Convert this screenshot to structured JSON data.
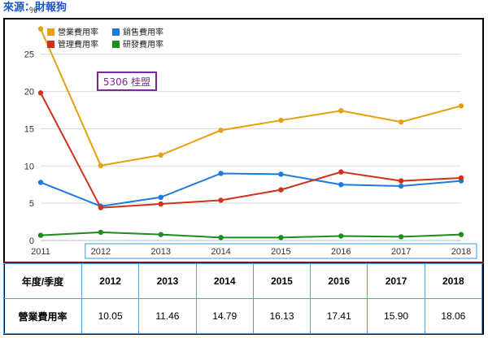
{
  "source_label": "來源：財報狗",
  "chart_data": {
    "type": "line",
    "ylabel": "%",
    "ylim": [
      0,
      29
    ],
    "yticks": [
      0,
      5,
      10,
      15,
      20,
      25
    ],
    "x": [
      "2011",
      "2012",
      "2013",
      "2014",
      "2015",
      "2016",
      "2017",
      "2018"
    ],
    "annotation": "5306 桂盟",
    "legend_position": "top-left",
    "series": [
      {
        "name": "營業費用率",
        "color": "#e6a00c",
        "values": [
          28.4,
          10.05,
          11.46,
          14.79,
          16.13,
          17.41,
          15.9,
          18.06
        ]
      },
      {
        "name": "銷售費用率",
        "color": "#1f7ae0",
        "values": [
          7.8,
          4.6,
          5.8,
          9.0,
          8.9,
          7.5,
          7.3,
          8.0
        ]
      },
      {
        "name": "管理費用率",
        "color": "#d0301c",
        "values": [
          19.8,
          4.4,
          4.9,
          5.4,
          6.8,
          9.2,
          8.0,
          8.4
        ]
      },
      {
        "name": "研發費用率",
        "color": "#1e8c1e",
        "values": [
          0.7,
          1.1,
          0.8,
          0.4,
          0.4,
          0.6,
          0.5,
          0.8
        ]
      }
    ]
  },
  "table": {
    "header_label": "年度/季度",
    "years": [
      "2012",
      "2013",
      "2014",
      "2015",
      "2016",
      "2017",
      "2018"
    ],
    "row_label": "營業費用率",
    "row_values": [
      "10.05",
      "11.46",
      "14.79",
      "16.13",
      "17.41",
      "15.90",
      "18.06"
    ]
  }
}
